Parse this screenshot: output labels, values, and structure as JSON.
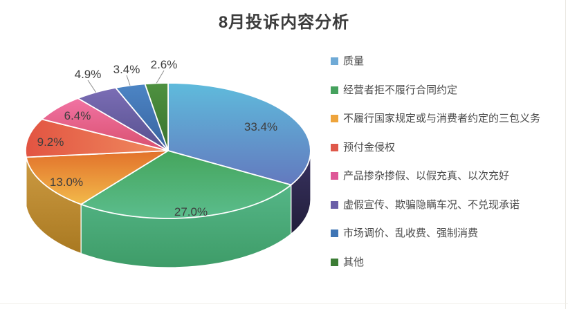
{
  "title": "8月投诉内容分析",
  "chart_data": {
    "type": "pie",
    "style": "3d",
    "title": "8月投诉内容分析",
    "unit": "%",
    "legend_position": "right",
    "label_color": "#3e3e3e",
    "leader_line_color": "#8c8c8c",
    "slices": [
      {
        "name": "质量",
        "value": 33.4,
        "label": "33.4%",
        "color": "#6faad6",
        "top_gradient": [
          "#5fbbdc",
          "#6379be"
        ],
        "side_gradient": [
          "#3a3462",
          "#211d3a"
        ]
      },
      {
        "name": "经营者拒不履行合同约定",
        "value": 27.0,
        "label": "27.0%",
        "color": "#46a25e",
        "top_gradient": [
          "#45a55c",
          "#5bbd8d"
        ],
        "side_gradient": [
          "#55b687",
          "#3e9c68"
        ]
      },
      {
        "name": "不履行国家规定或与消费者约定的三包义务",
        "value": 13.0,
        "label": "13.0%",
        "color": "#eea43c",
        "top_gradient": [
          "#e2712b",
          "#f2b94a"
        ],
        "side_gradient": [
          "#cd9b43",
          "#a97921"
        ]
      },
      {
        "name": "预付金侵权",
        "value": 9.2,
        "label": "9.2%",
        "color": "#df584a",
        "top_gradient": [
          "#e25442",
          "#f08c5f"
        ],
        "side_gradient": [
          "#c14c3d",
          "#a93f33"
        ]
      },
      {
        "name": "产品掺杂掺假、以假充真、以次充好",
        "value": 6.4,
        "label": "6.4%",
        "color": "#de5797",
        "top_gradient": [
          "#f173a3",
          "#d9506f"
        ],
        "side_gradient": [
          "#b94467",
          "#a03a58"
        ]
      },
      {
        "name": "虚假宣传、欺骗隐瞒车况、不兑现承诺",
        "value": 4.9,
        "label": "4.9%",
        "color": "#6a5ea8",
        "top_gradient": [
          "#7b6db5",
          "#56508e"
        ],
        "side_gradient": [
          "#544c8a",
          "#433c70"
        ]
      },
      {
        "name": "市场调价、乱收费、强制消费",
        "value": 3.4,
        "label": "3.4%",
        "color": "#3f75b5",
        "top_gradient": [
          "#4c85c5",
          "#38639f"
        ],
        "side_gradient": [
          "#355d95",
          "#2b4d7e"
        ]
      },
      {
        "name": "其他",
        "value": 2.6,
        "label": "2.6%",
        "color": "#3c7d35",
        "top_gradient": [
          "#4e9140",
          "#3a722f"
        ],
        "side_gradient": [
          "#376c2c",
          "#2c5823"
        ]
      }
    ]
  }
}
